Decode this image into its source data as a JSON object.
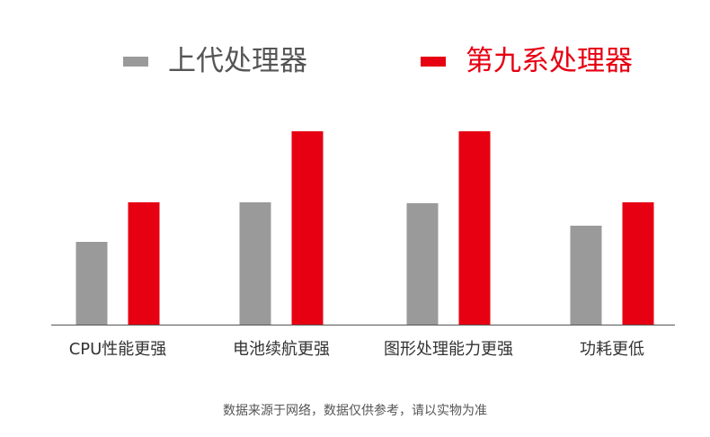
{
  "colors": {
    "prev": "#9a9a9a",
    "new": "#e60012",
    "axis": "#555555",
    "text": "#333333"
  },
  "legend": {
    "prev_label": "上代处理器",
    "new_label": "第九系处理器"
  },
  "footnote": "数据来源于网络，数据仅供参考，请以实物为准",
  "chart_data": {
    "type": "bar",
    "title": "",
    "xlabel": "",
    "ylabel": "",
    "categories": [
      "CPU性能更强",
      "电池续航更强",
      "图形处理能力更强",
      "功耗更低"
    ],
    "series": [
      {
        "name": "上代处理器",
        "values": [
          92,
          136,
          135,
          110
        ]
      },
      {
        "name": "第九系处理器",
        "values": [
          136,
          215,
          215,
          136
        ]
      }
    ],
    "ylim": [
      0,
      215
    ],
    "grid": false,
    "legend_position": "top"
  }
}
